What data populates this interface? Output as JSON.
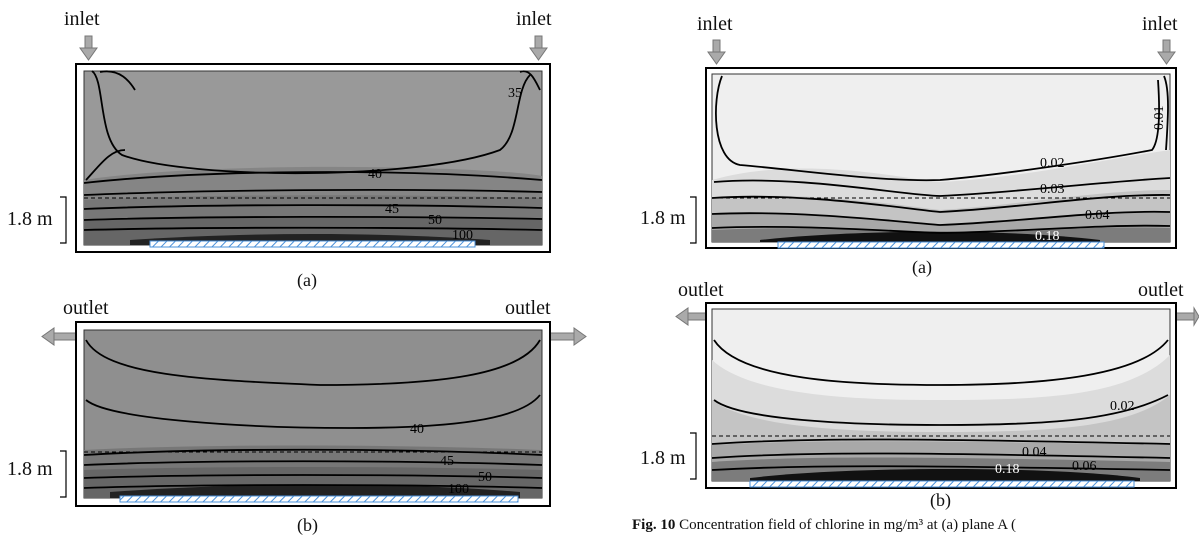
{
  "left": {
    "panel_a": {
      "inlet_left": "inlet",
      "inlet_right": "inlet",
      "height_label": "1.8 m",
      "contour_labels": [
        "35",
        "40",
        "45",
        "50",
        "100"
      ],
      "subcaption": "(a)"
    },
    "panel_b": {
      "outlet_left": "outlet",
      "outlet_right": "outlet",
      "height_label": "1.8 m",
      "contour_labels": [
        "40",
        "45",
        "50",
        "100"
      ],
      "subcaption": "(b)"
    }
  },
  "right": {
    "panel_a": {
      "inlet_left": "inlet",
      "inlet_right": "inlet",
      "height_label": "1.8 m",
      "contour_labels": [
        "0.01",
        "0.02",
        "0.03",
        "0.04",
        "0.18"
      ],
      "subcaption": "(a)"
    },
    "panel_b": {
      "outlet_left": "outlet",
      "outlet_right": "outlet",
      "height_label": "1.8 m",
      "contour_labels": [
        "0.02",
        "0.04",
        "0.06",
        "0.18"
      ],
      "subcaption": "(b)"
    },
    "caption_fig": "Fig. 10",
    "caption_text": "Concentration field of chlorine in mg/m³ at (a) plane A ("
  },
  "colors": {
    "left_fill": "#8f8f8f",
    "right_fill": "#efefef",
    "hatch": "#4a90d9"
  }
}
